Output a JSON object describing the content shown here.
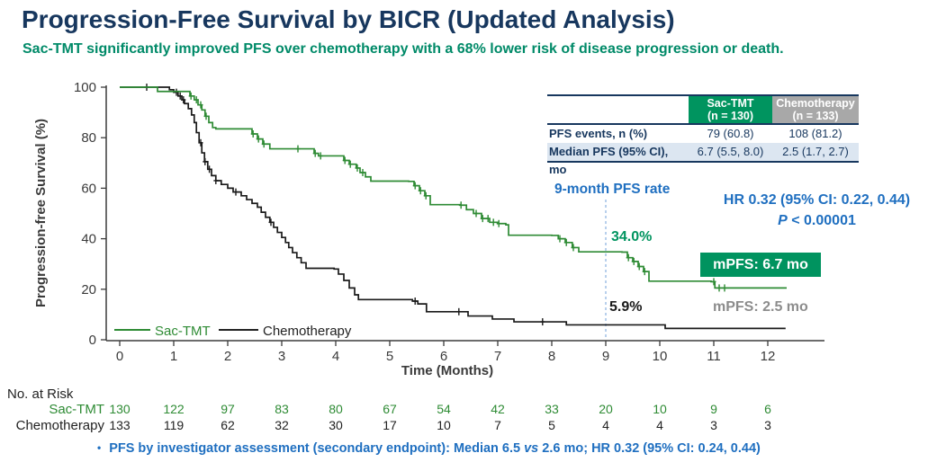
{
  "title": "Progression-Free Survival by BICR (Updated Analysis)",
  "subtitle": "Sac-TMT significantly improved PFS over chemotherapy with a 68% lower risk of disease progression or death.",
  "colors": {
    "title_navy": "#17375e",
    "subtitle_teal": "#008a68",
    "annotation_blue": "#1f6fc0",
    "sac_green_curve": "#2e8b34",
    "sac_green_fill": "#00945f",
    "chemo_black": "#1a1a1a",
    "chemo_gray_header": "#a8a8a8",
    "table_row_blue": "#dce6f1",
    "mpfs_gray_text": "#8c8c8c",
    "dashed_line_blue": "#8ab0e0"
  },
  "stats_table": {
    "col_sac": {
      "name": "Sac-TMT",
      "n": "(n = 130)"
    },
    "col_chemo": {
      "name": "Chemotherapy",
      "n": "(n = 133)"
    },
    "rows": [
      {
        "label": "PFS events, n (%)",
        "sac": "79 (60.8)",
        "chemo": "108 (81.2)"
      },
      {
        "label": "Median PFS (95% CI), mo",
        "sac": "6.7 (5.5, 8.0)",
        "chemo": "2.5 (1.7, 2.7)"
      }
    ]
  },
  "annotations": {
    "nine_month_label": "9-month PFS rate",
    "sac_rate": "34.0%",
    "chemo_rate": "5.9%",
    "hr": "HR 0.32 (95% CI: 0.22, 0.44)",
    "p_label": "P",
    "p_rest": " < 0.00001",
    "mpfs_sac": "mPFS: 6.7 mo",
    "mpfs_chemo": "mPFS: 2.5 mo"
  },
  "legend": [
    {
      "label": "Sac-TMT"
    },
    {
      "label": "Chemotherapy"
    }
  ],
  "chart_data": {
    "type": "line",
    "subtype": "kaplan-meier-step",
    "xlabel": "Time (Months)",
    "ylabel": "Progression-free Survival (%)",
    "xlim": [
      0,
      12.5
    ],
    "ylim": [
      0,
      100
    ],
    "x_ticks": [
      0,
      1,
      2,
      3,
      4,
      5,
      6,
      7,
      8,
      9,
      10,
      11,
      12
    ],
    "y_ticks": [
      0,
      20,
      40,
      60,
      80,
      100
    ],
    "grid": false,
    "legend_position": "lower-left-inside",
    "nine_month_line_x": 9,
    "nine_month_rates": {
      "sac_tmt": 34.0,
      "chemotherapy": 5.9
    },
    "medians": {
      "sac_tmt_mo": 6.7,
      "chemotherapy_mo": 2.5
    },
    "series": [
      {
        "name": "Chemotherapy",
        "color": "#1a1a1a",
        "steps": [
          [
            0,
            100
          ],
          [
            0.85,
            100
          ],
          [
            0.92,
            99
          ],
          [
            1.0,
            98
          ],
          [
            1.08,
            96.5
          ],
          [
            1.15,
            95
          ],
          [
            1.2,
            93.5
          ],
          [
            1.27,
            91.5
          ],
          [
            1.33,
            89
          ],
          [
            1.38,
            86
          ],
          [
            1.42,
            82
          ],
          [
            1.47,
            78
          ],
          [
            1.52,
            74
          ],
          [
            1.57,
            70.5
          ],
          [
            1.63,
            67.5
          ],
          [
            1.7,
            65
          ],
          [
            1.78,
            63
          ],
          [
            1.88,
            61.5
          ],
          [
            2.0,
            60
          ],
          [
            2.1,
            58.5
          ],
          [
            2.25,
            57
          ],
          [
            2.35,
            55.5
          ],
          [
            2.45,
            54
          ],
          [
            2.55,
            52.5
          ],
          [
            2.62,
            50.5
          ],
          [
            2.7,
            48.5
          ],
          [
            2.78,
            46.5
          ],
          [
            2.85,
            44.5
          ],
          [
            2.92,
            42.5
          ],
          [
            3.0,
            40.5
          ],
          [
            3.07,
            38.5
          ],
          [
            3.13,
            36.5
          ],
          [
            3.2,
            34.5
          ],
          [
            3.28,
            32.5
          ],
          [
            3.36,
            30.5
          ],
          [
            3.45,
            28.3
          ],
          [
            3.97,
            28
          ],
          [
            4.05,
            26
          ],
          [
            4.15,
            23.5
          ],
          [
            4.25,
            20.5
          ],
          [
            4.35,
            17.8
          ],
          [
            4.42,
            15.9
          ],
          [
            5.42,
            15.3
          ],
          [
            5.52,
            14.2
          ],
          [
            5.68,
            11.1
          ],
          [
            6.45,
            9.4
          ],
          [
            6.9,
            8.2
          ],
          [
            7.3,
            7.1
          ],
          [
            8.27,
            5.9
          ],
          [
            10.1,
            4.5
          ],
          [
            12.33,
            4.5
          ]
        ],
        "censor_months": [
          0.5,
          1.05,
          1.12,
          1.18,
          1.5,
          1.58,
          1.66,
          1.78,
          2.15,
          2.8,
          5.47,
          6.28,
          7.83
        ]
      },
      {
        "name": "Sac-TMT",
        "color": "#2e8b34",
        "steps": [
          [
            0,
            100
          ],
          [
            0.65,
            100
          ],
          [
            0.7,
            98.3
          ],
          [
            1.25,
            98.3
          ],
          [
            1.3,
            96.5
          ],
          [
            1.38,
            95
          ],
          [
            1.45,
            93
          ],
          [
            1.52,
            91
          ],
          [
            1.58,
            88.5
          ],
          [
            1.65,
            86
          ],
          [
            1.72,
            84
          ],
          [
            1.78,
            83.5
          ],
          [
            2.37,
            83.5
          ],
          [
            2.45,
            81.5
          ],
          [
            2.55,
            79.5
          ],
          [
            2.65,
            77.5
          ],
          [
            2.78,
            75.6
          ],
          [
            3.52,
            75.6
          ],
          [
            3.6,
            73.8
          ],
          [
            3.68,
            72.8
          ],
          [
            4.08,
            72.8
          ],
          [
            4.15,
            71
          ],
          [
            4.25,
            69.5
          ],
          [
            4.38,
            68
          ],
          [
            4.45,
            66.2
          ],
          [
            4.55,
            64.5
          ],
          [
            4.65,
            62.8
          ],
          [
            5.35,
            62.7
          ],
          [
            5.45,
            61
          ],
          [
            5.55,
            59
          ],
          [
            5.65,
            57
          ],
          [
            5.75,
            53.5
          ],
          [
            6.3,
            53.3
          ],
          [
            6.42,
            51.5
          ],
          [
            6.55,
            50
          ],
          [
            6.7,
            48
          ],
          [
            6.85,
            46.5
          ],
          [
            7.0,
            46
          ],
          [
            7.15,
            45.5
          ],
          [
            7.2,
            41.4
          ],
          [
            8.0,
            41.3
          ],
          [
            8.12,
            40
          ],
          [
            8.25,
            38.5
          ],
          [
            8.38,
            36.5
          ],
          [
            8.5,
            34.8
          ],
          [
            9.3,
            34.7
          ],
          [
            9.4,
            32.5
          ],
          [
            9.5,
            31
          ],
          [
            9.6,
            29
          ],
          [
            9.7,
            27
          ],
          [
            9.8,
            23.2
          ],
          [
            10.95,
            23
          ],
          [
            11.02,
            20.5
          ],
          [
            12.35,
            20.5
          ]
        ],
        "censor_months": [
          1.32,
          1.42,
          1.5,
          1.6,
          2.47,
          2.57,
          2.67,
          3.3,
          3.62,
          3.72,
          4.17,
          4.27,
          4.4,
          4.5,
          5.47,
          5.57,
          5.67,
          6.32,
          6.6,
          6.72,
          6.82,
          6.92,
          7.02,
          8.15,
          8.27,
          8.4,
          9.42,
          9.52,
          9.62,
          9.72,
          11.0,
          11.1,
          11.2
        ]
      }
    ]
  },
  "at_risk": {
    "header": "No. at Risk",
    "months": [
      0,
      1,
      2,
      3,
      4,
      5,
      6,
      7,
      8,
      9,
      10,
      11,
      12
    ],
    "rows": [
      {
        "name": "Sac-TMT",
        "color": "#2e8b34",
        "values": [
          130,
          122,
          97,
          83,
          80,
          67,
          54,
          42,
          33,
          20,
          10,
          9,
          6
        ]
      },
      {
        "name": "Chemotherapy",
        "color": "#222222",
        "values": [
          133,
          119,
          62,
          32,
          30,
          17,
          10,
          7,
          5,
          4,
          4,
          3,
          3
        ]
      }
    ]
  },
  "footer": {
    "bullet": "•",
    "text_pre": "PFS by investigator assessment (secondary endpoint): Median 6.5 ",
    "vs": "vs",
    "text_post": " 2.6 mo; HR 0.32 (95% CI: 0.24, 0.44)"
  }
}
